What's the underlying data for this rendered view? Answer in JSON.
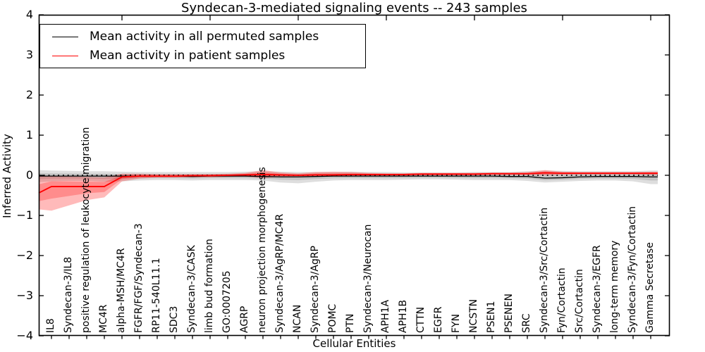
{
  "chart_data": {
    "type": "line",
    "title": "Syndecan-3-mediated signaling events -- 243 samples",
    "xlabel": "Cellular Entities",
    "ylabel": "Inferred Activity",
    "ylim": [
      -4,
      4
    ],
    "yticks": [
      {
        "value": 4,
        "label": "4"
      },
      {
        "value": 3,
        "label": "3"
      },
      {
        "value": 2,
        "label": "2"
      },
      {
        "value": 1,
        "label": "1"
      },
      {
        "value": 0,
        "label": "0"
      },
      {
        "value": -1,
        "label": "−1"
      },
      {
        "value": -2,
        "label": "−2"
      },
      {
        "value": -3,
        "label": "−3"
      },
      {
        "value": -4,
        "label": "−4"
      }
    ],
    "top_tick_indices": [
      4,
      9,
      14,
      19,
      24,
      29,
      34
    ],
    "grid": false,
    "legend_position": "upper left",
    "legend": [
      {
        "label": "Mean activity in all permuted samples",
        "color": "#000000"
      },
      {
        "label": "Mean activity in patient samples",
        "color": "#ff0000"
      }
    ],
    "zero_line": {
      "value": 0,
      "style": "dotted",
      "color": "#000000"
    },
    "categories": [
      "IL8",
      "Syndecan-3/IL8",
      "positive regulation of leukocyte migration",
      "MC4R",
      "alpha-MSH/MC4R",
      "FGFR/FGF/Syndecan-3",
      "RP11-540L11.1",
      "SDC3",
      "Syndecan-3/CASK",
      "limb bud formation",
      "GO:0007205",
      "AGRP",
      "neuron projection morphogenesis",
      "Syndecan-3/AgRP/MC4R",
      "NCAN",
      "Syndecan-3/AgRP",
      "POMC",
      "PTN",
      "Syndecan-3/Neurocan",
      "APH1A",
      "APH1B",
      "CTTN",
      "EGFR",
      "FYN",
      "NCSTN",
      "PSEN1",
      "PSENEN",
      "SRC",
      "Syndecan-3/Src/Cortactin",
      "Fyn/Cortactin",
      "Src/Cortactin",
      "Syndecan-3/EGFR",
      "long-term memory",
      "Syndecan-3/Fyn/Cortactin",
      "Gamma Secretase"
    ],
    "series": [
      {
        "name": "Mean activity in all permuted samples",
        "color": "#000000",
        "edge_value": -0.02,
        "values": [
          -0.02,
          -0.02,
          -0.02,
          -0.02,
          -0.02,
          -0.02,
          -0.02,
          -0.02,
          -0.03,
          -0.02,
          -0.02,
          -0.02,
          -0.03,
          -0.04,
          -0.04,
          -0.03,
          -0.02,
          -0.02,
          -0.02,
          -0.02,
          -0.02,
          -0.02,
          -0.02,
          -0.02,
          -0.02,
          -0.02,
          -0.03,
          -0.03,
          -0.07,
          -0.06,
          -0.04,
          -0.03,
          -0.03,
          -0.03,
          -0.04
        ],
        "band_upper_edge": 0.13,
        "band_upper": [
          0.12,
          0.11,
          0.1,
          0.1,
          0.09,
          0.08,
          0.08,
          0.08,
          0.08,
          0.08,
          0.08,
          0.09,
          0.1,
          0.09,
          0.08,
          0.08,
          0.08,
          0.09,
          0.08,
          0.08,
          0.07,
          0.07,
          0.07,
          0.07,
          0.08,
          0.08,
          0.08,
          0.1,
          0.12,
          0.11,
          0.1,
          0.1,
          0.1,
          0.1,
          0.12
        ],
        "band_lower_edge": -0.17,
        "band_lower": [
          -0.15,
          -0.14,
          -0.14,
          -0.16,
          -0.15,
          -0.13,
          -0.12,
          -0.12,
          -0.13,
          -0.12,
          -0.12,
          -0.12,
          -0.13,
          -0.18,
          -0.2,
          -0.16,
          -0.13,
          -0.12,
          -0.12,
          -0.12,
          -0.11,
          -0.1,
          -0.1,
          -0.11,
          -0.12,
          -0.12,
          -0.12,
          -0.14,
          -0.18,
          -0.16,
          -0.14,
          -0.13,
          -0.13,
          -0.15,
          -0.22
        ],
        "band_fill": "#000000",
        "band_opacity": 0.13
      },
      {
        "name": "Mean activity in patient samples",
        "color": "#ff0000",
        "edge_value": -0.44,
        "values": [
          -0.28,
          -0.28,
          -0.28,
          -0.28,
          -0.04,
          -0.02,
          -0.02,
          -0.02,
          -0.01,
          -0.01,
          0.0,
          0.01,
          0.02,
          0.01,
          0.0,
          0.01,
          0.01,
          0.02,
          0.02,
          0.02,
          0.02,
          0.03,
          0.03,
          0.03,
          0.03,
          0.04,
          0.04,
          0.04,
          0.06,
          0.05,
          0.05,
          0.05,
          0.05,
          0.05,
          0.05
        ],
        "band_upper_edge": -0.01,
        "band_upper": [
          -0.02,
          -0.03,
          -0.04,
          -0.05,
          0.04,
          0.04,
          0.03,
          0.03,
          0.03,
          0.03,
          0.04,
          0.06,
          0.13,
          0.07,
          0.05,
          0.08,
          0.09,
          0.08,
          0.06,
          0.05,
          0.05,
          0.06,
          0.06,
          0.06,
          0.06,
          0.07,
          0.07,
          0.08,
          0.13,
          0.09,
          0.08,
          0.08,
          0.08,
          0.08,
          0.09
        ],
        "band_lower_edge": -0.85,
        "band_lower": [
          -0.88,
          -0.75,
          -0.62,
          -0.55,
          -0.15,
          -0.08,
          -0.06,
          -0.06,
          -0.05,
          -0.05,
          -0.04,
          -0.03,
          -0.07,
          -0.04,
          -0.03,
          -0.03,
          -0.03,
          -0.03,
          -0.02,
          -0.01,
          -0.01,
          0.0,
          0.0,
          0.0,
          0.0,
          0.01,
          0.01,
          0.01,
          0.0,
          0.01,
          0.02,
          0.02,
          0.02,
          0.02,
          0.01
        ],
        "band_fill": "#ff0000",
        "band_opacity": 0.27
      }
    ]
  }
}
